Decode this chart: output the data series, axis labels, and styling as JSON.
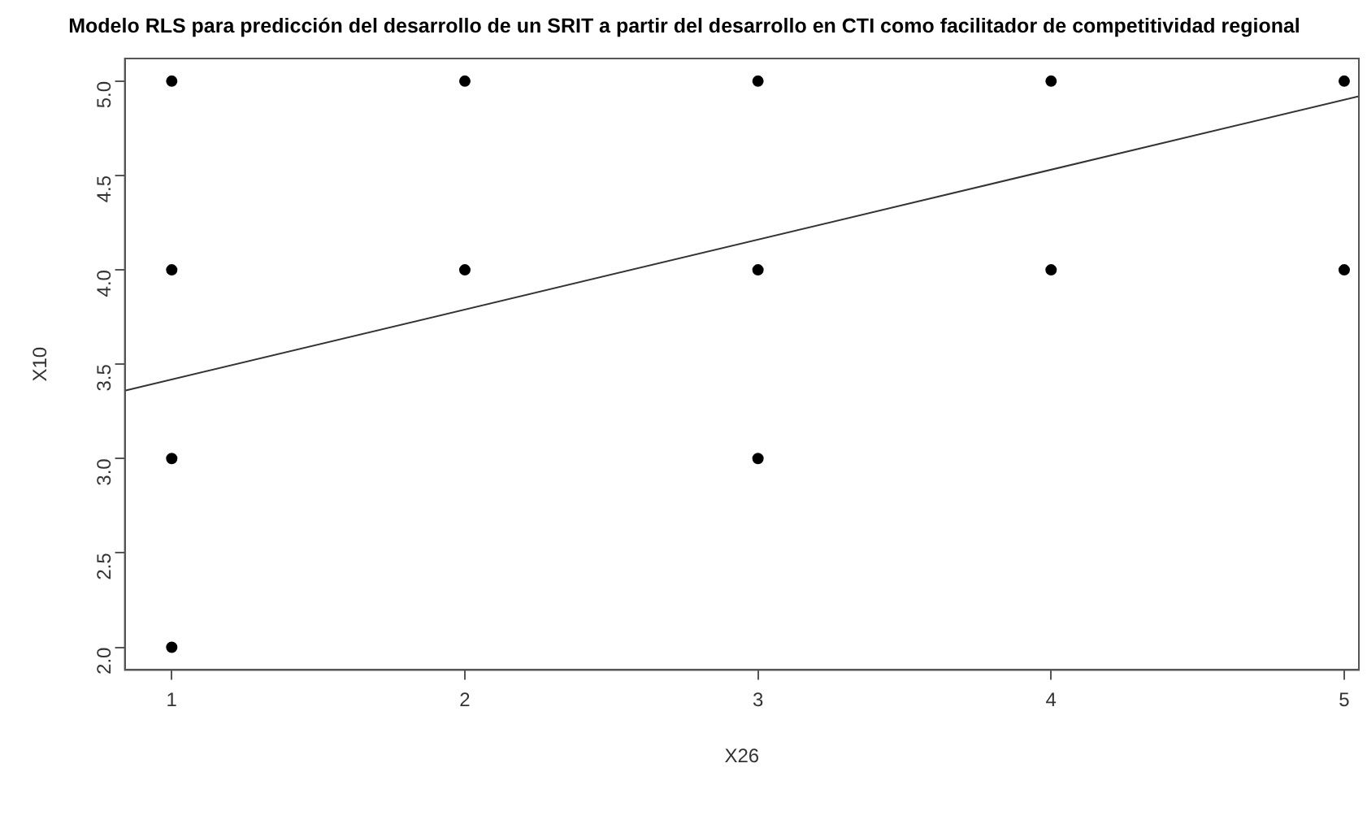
{
  "chart_data": {
    "type": "scatter",
    "title": "Modelo RLS para predicción del desarrollo de un SRIT a partir del desarrollo en CTI como facilitador de competitividad regional",
    "xlabel": "X26",
    "ylabel": "X10",
    "grid": false,
    "xlim": [
      0.84,
      5.05
    ],
    "xticks": [
      1,
      2,
      3,
      4,
      5
    ],
    "ylim": [
      1.88,
      5.12
    ],
    "yticks": [
      {
        "value": 2,
        "label": "2.0"
      },
      {
        "value": 2.5,
        "label": "2.5"
      },
      {
        "value": 3,
        "label": "3.0"
      },
      {
        "value": 3.5,
        "label": "3.5"
      },
      {
        "value": 4,
        "label": "4.0"
      },
      {
        "value": 4.5,
        "label": "4.5"
      },
      {
        "value": 5,
        "label": "5.0"
      }
    ],
    "series": [
      {
        "marker": "circle",
        "color": "#000000",
        "x": [
          1,
          1,
          1,
          1,
          2,
          2,
          3,
          3,
          3,
          4,
          4,
          5,
          5
        ],
        "values": [
          5,
          4,
          3,
          2,
          5,
          4,
          5,
          4,
          3,
          5,
          4,
          5,
          4
        ]
      },
      {
        "type": "line",
        "color": "#333333",
        "x": [
          0.84,
          5.05
        ],
        "values": [
          3.36,
          4.92
        ]
      }
    ]
  }
}
